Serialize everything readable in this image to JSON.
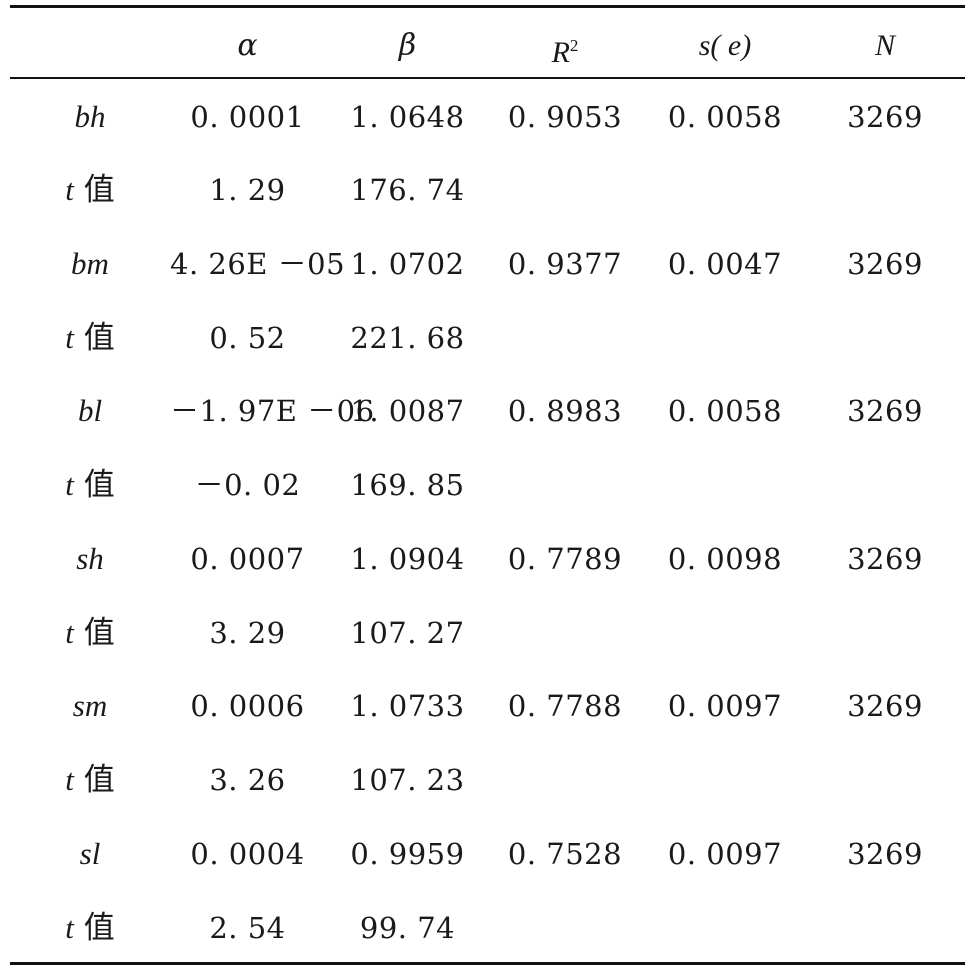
{
  "table": {
    "header": {
      "row_label": "",
      "alpha": "α",
      "beta": "β",
      "r2_base": "R",
      "r2_sup": "2",
      "se": "s( e)",
      "n": "N"
    },
    "rows": [
      {
        "label": "bh",
        "alpha": "0. 0001",
        "beta": "1. 0648",
        "r2": "0. 9053",
        "se": "0. 0058",
        "n": "3269"
      },
      {
        "label_t": "t",
        "label_cjk": "值",
        "alpha": "1. 29",
        "beta": "176. 74"
      },
      {
        "label": "bm",
        "alpha": "4. 26E －05",
        "beta": "1. 0702",
        "r2": "0. 9377",
        "se": "0. 0047",
        "n": "3269"
      },
      {
        "label_t": "t",
        "label_cjk": "值",
        "alpha": "0. 52",
        "beta": "221. 68"
      },
      {
        "label": "bl",
        "alpha": "－1. 97E －06",
        "beta": "1. 0087",
        "r2": "0. 8983",
        "se": "0. 0058",
        "n": "3269"
      },
      {
        "label_t": "t",
        "label_cjk": "值",
        "alpha": "－0. 02",
        "beta": "169. 85"
      },
      {
        "label": "sh",
        "alpha": "0. 0007",
        "beta": "1. 0904",
        "r2": "0. 7789",
        "se": "0. 0098",
        "n": "3269"
      },
      {
        "label_t": "t",
        "label_cjk": "值",
        "alpha": "3. 29",
        "beta": "107. 27"
      },
      {
        "label": "sm",
        "alpha": "0. 0006",
        "beta": "1. 0733",
        "r2": "0. 7788",
        "se": "0. 0097",
        "n": "3269"
      },
      {
        "label_t": "t",
        "label_cjk": "值",
        "alpha": "3. 26",
        "beta": "107. 23"
      },
      {
        "label": "sl",
        "alpha": "0. 0004",
        "beta": "0. 9959",
        "r2": "0. 7528",
        "se": "0. 0097",
        "n": "3269"
      },
      {
        "label_t": "t",
        "label_cjk": "值",
        "alpha": "2. 54",
        "beta": "99. 74"
      }
    ]
  }
}
